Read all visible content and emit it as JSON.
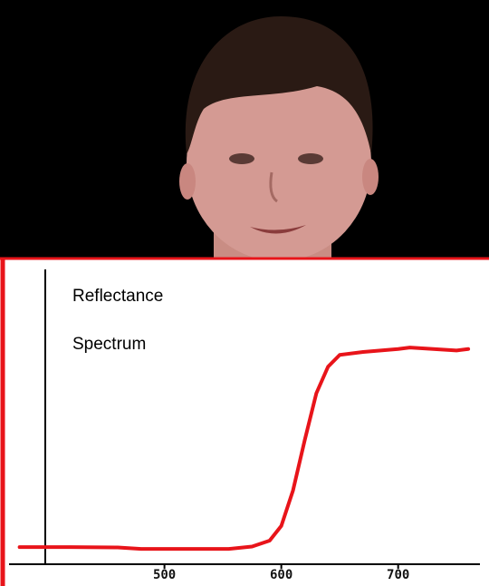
{
  "chart_data": {
    "type": "line",
    "annotations": [
      "Reflectance",
      "Spectrum"
    ],
    "series": [
      {
        "color": "#e8141a",
        "x": [
          376,
          420,
          460,
          480,
          520,
          555,
          575,
          590,
          600,
          610,
          620,
          630,
          640,
          650,
          670,
          700,
          710,
          730,
          750,
          760
        ],
        "values": [
          0.058,
          0.058,
          0.057,
          0.052,
          0.052,
          0.052,
          0.06,
          0.08,
          0.13,
          0.25,
          0.42,
          0.58,
          0.67,
          0.71,
          0.72,
          0.73,
          0.735,
          0.73,
          0.725,
          0.73
        ]
      }
    ],
    "xlim": [
      367,
      770
    ],
    "xticks": [
      500,
      600,
      700
    ],
    "ylim": [
      0,
      1
    ]
  }
}
